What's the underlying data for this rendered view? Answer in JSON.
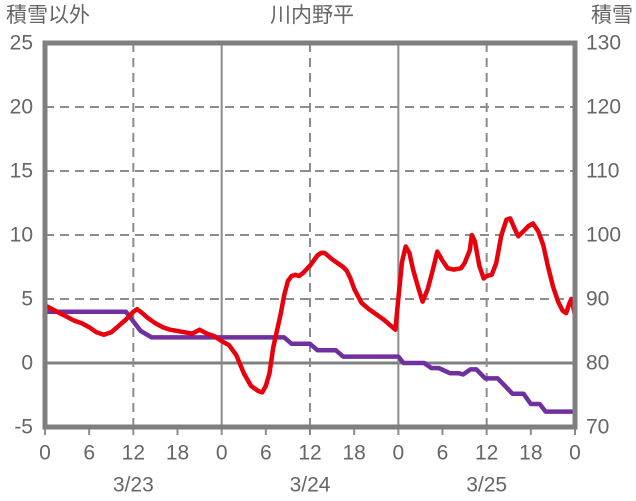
{
  "chart_data": {
    "type": "line",
    "title": "川内野平",
    "left_axis": {
      "title": "積雪以外",
      "ticks": [
        25,
        20,
        15,
        10,
        5,
        0,
        -5
      ],
      "min": -5,
      "max": 25
    },
    "right_axis": {
      "title": "積雪",
      "ticks": [
        130,
        120,
        110,
        100,
        90,
        80,
        70
      ],
      "min": 70,
      "max": 130
    },
    "x_axis": {
      "total_hours": 72,
      "hour_labels": [
        "0",
        "6",
        "12",
        "18",
        "0",
        "6",
        "12",
        "18",
        "0",
        "6",
        "12",
        "18",
        "0"
      ],
      "hour_label_step": 6,
      "date_labels": [
        {
          "text": "3/23",
          "hour": 12
        },
        {
          "text": "3/24",
          "hour": 36
        },
        {
          "text": "3/25",
          "hour": 60
        }
      ],
      "dashed_lines_hours": [
        12,
        36,
        60
      ],
      "solid_lines_hours": [
        24,
        48
      ]
    },
    "grid": {
      "dashed_values": [
        20,
        15,
        10,
        5
      ],
      "solid_zero_value": 0
    },
    "styles": {
      "series1_color": "#e8000d",
      "series2_color": "#7030a0",
      "grid_color": "#8c8c8c",
      "border_color": "#7f7f7f",
      "text_color": "#666666"
    },
    "series": [
      {
        "name": "積雪以外",
        "axis": "left",
        "color": "#e8000d",
        "points": [
          [
            0,
            4.5
          ],
          [
            1,
            4.2
          ],
          [
            2,
            3.9
          ],
          [
            3,
            3.6
          ],
          [
            4,
            3.3
          ],
          [
            5,
            3.1
          ],
          [
            6,
            2.8
          ],
          [
            7,
            2.4
          ],
          [
            8,
            2.2
          ],
          [
            9,
            2.4
          ],
          [
            10,
            2.9
          ],
          [
            11,
            3.4
          ],
          [
            12,
            4.0
          ],
          [
            12.5,
            4.2
          ],
          [
            13,
            4.0
          ],
          [
            14,
            3.5
          ],
          [
            15,
            3.1
          ],
          [
            16,
            2.8
          ],
          [
            17,
            2.6
          ],
          [
            18,
            2.5
          ],
          [
            19,
            2.4
          ],
          [
            20,
            2.3
          ],
          [
            21,
            2.6
          ],
          [
            22,
            2.3
          ],
          [
            23,
            2.1
          ],
          [
            24,
            1.7
          ],
          [
            25,
            1.4
          ],
          [
            26,
            0.6
          ],
          [
            27,
            -0.8
          ],
          [
            28,
            -1.8
          ],
          [
            29,
            -2.2
          ],
          [
            29.5,
            -2.3
          ],
          [
            30,
            -1.8
          ],
          [
            30.5,
            -0.8
          ],
          [
            31,
            1.2
          ],
          [
            32,
            3.8
          ],
          [
            32.5,
            5.3
          ],
          [
            33,
            6.4
          ],
          [
            33.5,
            6.8
          ],
          [
            34,
            6.9
          ],
          [
            34.5,
            6.8
          ],
          [
            35,
            7.0
          ],
          [
            36,
            7.6
          ],
          [
            37,
            8.4
          ],
          [
            37.5,
            8.6
          ],
          [
            38,
            8.6
          ],
          [
            39,
            8.1
          ],
          [
            40,
            7.7
          ],
          [
            40.5,
            7.5
          ],
          [
            41,
            7.2
          ],
          [
            41.5,
            6.6
          ],
          [
            42,
            5.8
          ],
          [
            43,
            4.7
          ],
          [
            44,
            4.2
          ],
          [
            45,
            3.8
          ],
          [
            46,
            3.4
          ],
          [
            47,
            2.9
          ],
          [
            47.6,
            2.6
          ],
          [
            48,
            5.0
          ],
          [
            48.5,
            7.9
          ],
          [
            49,
            9.1
          ],
          [
            49.5,
            8.6
          ],
          [
            50,
            7.3
          ],
          [
            50.7,
            5.9
          ],
          [
            51.3,
            4.8
          ],
          [
            52,
            5.8
          ],
          [
            52.7,
            7.3
          ],
          [
            53.3,
            8.7
          ],
          [
            54,
            8.0
          ],
          [
            54.7,
            7.4
          ],
          [
            55.5,
            7.3
          ],
          [
            56.5,
            7.4
          ],
          [
            57,
            7.8
          ],
          [
            57.7,
            8.8
          ],
          [
            58,
            10.0
          ],
          [
            58.4,
            9.5
          ],
          [
            59,
            7.6
          ],
          [
            59.6,
            6.6
          ],
          [
            60,
            6.8
          ],
          [
            60.7,
            6.9
          ],
          [
            61.3,
            7.8
          ],
          [
            62,
            10.0
          ],
          [
            62.7,
            11.2
          ],
          [
            63.2,
            11.3
          ],
          [
            63.8,
            10.5
          ],
          [
            64.3,
            9.9
          ],
          [
            65,
            10.3
          ],
          [
            65.7,
            10.7
          ],
          [
            66.3,
            10.9
          ],
          [
            67,
            10.3
          ],
          [
            67.7,
            9.2
          ],
          [
            68.3,
            7.6
          ],
          [
            69,
            6.0
          ],
          [
            69.7,
            4.8
          ],
          [
            70.3,
            4.1
          ],
          [
            70.8,
            3.9
          ],
          [
            71.2,
            4.6
          ],
          [
            71.5,
            5.0
          ],
          [
            71.8,
            4.3
          ],
          [
            72,
            3.7
          ]
        ]
      },
      {
        "name": "積雪",
        "axis": "right",
        "color": "#7030a0",
        "points": [
          [
            0,
            88
          ],
          [
            11,
            88
          ],
          [
            12,
            86.5
          ],
          [
            13,
            85
          ],
          [
            14.5,
            84
          ],
          [
            32.5,
            84
          ],
          [
            33.5,
            83
          ],
          [
            36,
            83
          ],
          [
            37,
            82
          ],
          [
            39.5,
            82
          ],
          [
            40.5,
            81
          ],
          [
            48,
            81
          ],
          [
            48.7,
            80
          ],
          [
            51.5,
            80
          ],
          [
            52.5,
            79.2
          ],
          [
            53.5,
            79.2
          ],
          [
            55,
            78.4
          ],
          [
            56.2,
            78.4
          ],
          [
            56.8,
            78.2
          ],
          [
            57.8,
            79
          ],
          [
            58.6,
            79
          ],
          [
            59.8,
            77.6
          ],
          [
            61.5,
            77.6
          ],
          [
            62.5,
            76.4
          ],
          [
            63.5,
            75.2
          ],
          [
            65,
            75.2
          ],
          [
            66,
            73.6
          ],
          [
            67.2,
            73.6
          ],
          [
            68,
            72.4
          ],
          [
            72,
            72.4
          ]
        ]
      }
    ]
  }
}
